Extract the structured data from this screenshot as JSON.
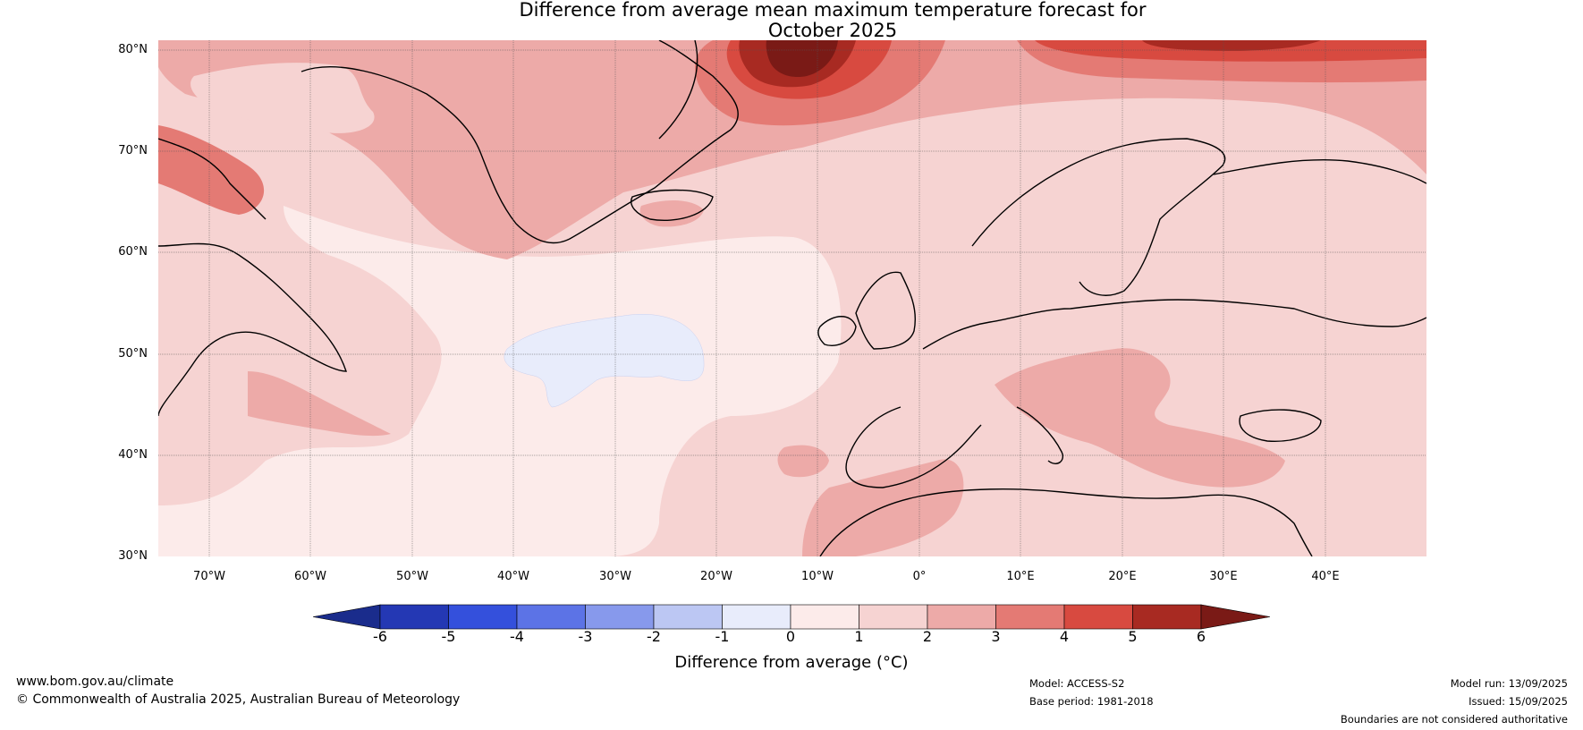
{
  "title": {
    "line1": "Difference from average mean maximum temperature forecast for",
    "line2": "October 2025"
  },
  "map": {
    "lat_labels": [
      "80°N",
      "70°N",
      "60°N",
      "50°N",
      "40°N",
      "30°N"
    ],
    "lon_labels": [
      "70°W",
      "60°W",
      "50°W",
      "40°W",
      "30°W",
      "20°W",
      "10°W",
      "0°",
      "10°E",
      "20°E",
      "30°E",
      "40°E"
    ],
    "extent": {
      "lon_min": -75,
      "lon_max": 50,
      "lat_min": 30,
      "lat_max": 81
    }
  },
  "colorbar": {
    "ticks": [
      "-6",
      "-5",
      "-4",
      "-3",
      "-2",
      "-1",
      "0",
      "1",
      "2",
      "3",
      "4",
      "5",
      "6"
    ],
    "colors": [
      "#1a2c8c",
      "#2438b4",
      "#3450dc",
      "#5c73e6",
      "#8799ec",
      "#bcc7f3",
      "#e8ecfb",
      "#fcebea",
      "#f6d3d2",
      "#edaaa8",
      "#e47a74",
      "#d84a40",
      "#a82a22",
      "#7a1a16"
    ],
    "label": "Difference from average (°C)"
  },
  "footer": {
    "website": "www.bom.gov.au/climate",
    "copyright": "© Commonwealth of Australia 2025, Australian Bureau of Meteorology",
    "model": "Model: ACCESS-S2",
    "base_period": "Base period: 1981-2018",
    "model_run": "Model run: 13/09/2025",
    "issued": "Issued: 15/09/2025",
    "disclaimer": "Boundaries are not considered authoritative"
  }
}
